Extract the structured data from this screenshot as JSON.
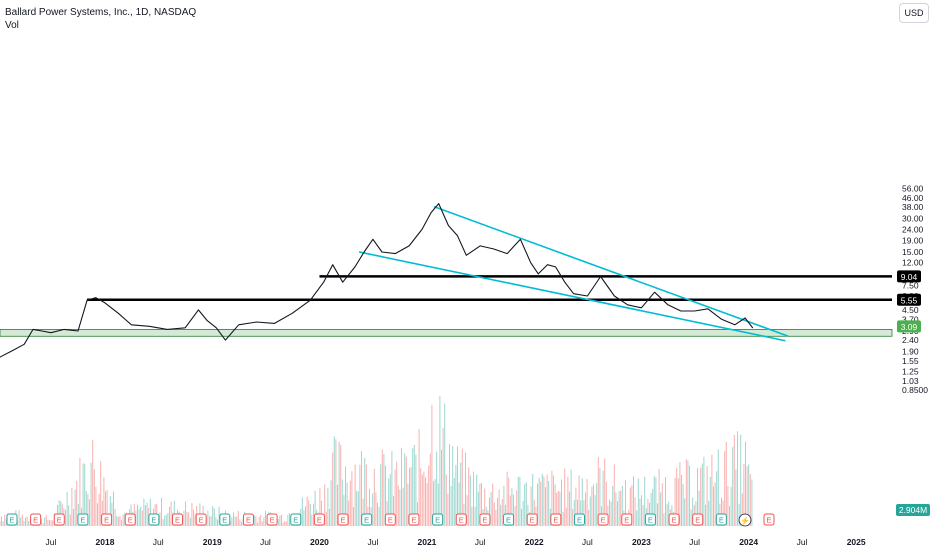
{
  "legend": {
    "title": "Ballard Power Systems, Inc., 1D, NASDAQ",
    "volume_label": "Vol"
  },
  "currency": "USD",
  "colors": {
    "up": "#26a69a",
    "down": "#ef5350",
    "price_line": "#131722",
    "trendline": "#00bcd4",
    "support_zone_fill": "#c8e6c9",
    "support_zone_edge": "#2e7d32",
    "level_line": "#000000",
    "last_price_badge": "#4caf50"
  },
  "chart_data": {
    "type": "line",
    "y_scale": "log",
    "y_ticks": [
      "56.00",
      "46.00",
      "38.00",
      "30.00",
      "24.00",
      "19.00",
      "15.00",
      "12.00",
      "9.50",
      "7.50",
      "6.00",
      "4.50",
      "3.70",
      "2.90",
      "2.40",
      "1.90",
      "1.55",
      "1.25",
      "1.03",
      "0.8500"
    ],
    "x_ticks": [
      "Jul",
      "2018",
      "Jul",
      "2019",
      "Jul",
      "2020",
      "Jul",
      "2021",
      "Jul",
      "2022",
      "Jul",
      "2023",
      "Jul",
      "2024",
      "Jul",
      "2025"
    ],
    "series": [
      {
        "values": [
          {
            "x": "2017-01-01",
            "y": 1.65
          },
          {
            "x": "2017-02-15",
            "y": 1.9
          },
          {
            "x": "2017-04-01",
            "y": 2.2
          },
          {
            "x": "2017-05-01",
            "y": 3.0
          },
          {
            "x": "2017-06-01",
            "y": 2.9
          },
          {
            "x": "2017-07-01",
            "y": 2.8
          },
          {
            "x": "2017-08-15",
            "y": 3.0
          },
          {
            "x": "2017-10-01",
            "y": 2.9
          },
          {
            "x": "2017-11-01",
            "y": 5.5
          },
          {
            "x": "2017-12-01",
            "y": 5.8
          },
          {
            "x": "2018-01-01",
            "y": 5.2
          },
          {
            "x": "2018-02-15",
            "y": 4.2
          },
          {
            "x": "2018-04-01",
            "y": 3.3
          },
          {
            "x": "2018-06-01",
            "y": 3.2
          },
          {
            "x": "2018-08-01",
            "y": 3.0
          },
          {
            "x": "2018-10-01",
            "y": 3.1
          },
          {
            "x": "2018-11-15",
            "y": 4.5
          },
          {
            "x": "2018-12-15",
            "y": 3.6
          },
          {
            "x": "2019-01-15",
            "y": 3.1
          },
          {
            "x": "2019-02-15",
            "y": 2.4
          },
          {
            "x": "2019-04-01",
            "y": 3.3
          },
          {
            "x": "2019-06-01",
            "y": 3.5
          },
          {
            "x": "2019-08-01",
            "y": 3.4
          },
          {
            "x": "2019-10-01",
            "y": 4.2
          },
          {
            "x": "2019-12-01",
            "y": 5.5
          },
          {
            "x": "2020-01-15",
            "y": 8.0
          },
          {
            "x": "2020-02-15",
            "y": 11.5
          },
          {
            "x": "2020-03-20",
            "y": 8.0
          },
          {
            "x": "2020-05-01",
            "y": 11.0
          },
          {
            "x": "2020-06-01",
            "y": 15.0
          },
          {
            "x": "2020-07-01",
            "y": 19.5
          },
          {
            "x": "2020-08-01",
            "y": 15.0
          },
          {
            "x": "2020-09-15",
            "y": 14.5
          },
          {
            "x": "2020-11-01",
            "y": 17.0
          },
          {
            "x": "2020-12-15",
            "y": 24.0
          },
          {
            "x": "2021-01-15",
            "y": 34.0
          },
          {
            "x": "2021-02-10",
            "y": 41.0
          },
          {
            "x": "2021-03-15",
            "y": 26.0
          },
          {
            "x": "2021-04-15",
            "y": 21.0
          },
          {
            "x": "2021-05-15",
            "y": 14.0
          },
          {
            "x": "2021-07-01",
            "y": 17.0
          },
          {
            "x": "2021-08-15",
            "y": 16.0
          },
          {
            "x": "2021-10-01",
            "y": 14.5
          },
          {
            "x": "2021-11-15",
            "y": 19.5
          },
          {
            "x": "2021-12-20",
            "y": 12.0
          },
          {
            "x": "2022-01-15",
            "y": 9.5
          },
          {
            "x": "2022-02-15",
            "y": 11.5
          },
          {
            "x": "2022-03-15",
            "y": 11.0
          },
          {
            "x": "2022-04-15",
            "y": 8.0
          },
          {
            "x": "2022-05-15",
            "y": 6.3
          },
          {
            "x": "2022-07-01",
            "y": 6.0
          },
          {
            "x": "2022-08-15",
            "y": 9.0
          },
          {
            "x": "2022-10-01",
            "y": 6.0
          },
          {
            "x": "2022-11-15",
            "y": 5.0
          },
          {
            "x": "2023-01-01",
            "y": 4.7
          },
          {
            "x": "2023-02-15",
            "y": 6.5
          },
          {
            "x": "2023-04-01",
            "y": 5.0
          },
          {
            "x": "2023-05-15",
            "y": 4.4
          },
          {
            "x": "2023-07-01",
            "y": 4.4
          },
          {
            "x": "2023-08-15",
            "y": 4.6
          },
          {
            "x": "2023-10-01",
            "y": 3.7
          },
          {
            "x": "2023-11-15",
            "y": 3.3
          },
          {
            "x": "2023-12-20",
            "y": 3.8
          },
          {
            "x": "2024-01-15",
            "y": 3.09
          }
        ]
      },
      {
        "name": "Vol",
        "unit": "M",
        "last_value": "2.904M",
        "values": [
          {
            "x": "2017-03-01",
            "y": 1.0
          },
          {
            "x": "2017-07-01",
            "y": 0.6
          },
          {
            "x": "2017-11-15",
            "y": 6.0
          },
          {
            "x": "2018-03-01",
            "y": 1.2
          },
          {
            "x": "2018-06-01",
            "y": 1.8
          },
          {
            "x": "2018-11-15",
            "y": 1.5
          },
          {
            "x": "2019-03-01",
            "y": 1.0
          },
          {
            "x": "2019-09-01",
            "y": 0.9
          },
          {
            "x": "2020-01-15",
            "y": 3.0
          },
          {
            "x": "2020-02-15",
            "y": 5.5
          },
          {
            "x": "2020-06-15",
            "y": 5.0
          },
          {
            "x": "2020-09-15",
            "y": 4.5
          },
          {
            "x": "2020-12-15",
            "y": 6.0
          },
          {
            "x": "2021-01-20",
            "y": 10.0
          },
          {
            "x": "2021-02-10",
            "y": 9.0
          },
          {
            "x": "2021-04-15",
            "y": 5.0
          },
          {
            "x": "2021-07-15",
            "y": 3.0
          },
          {
            "x": "2021-11-15",
            "y": 3.5
          },
          {
            "x": "2022-02-15",
            "y": 3.5
          },
          {
            "x": "2022-05-15",
            "y": 3.5
          },
          {
            "x": "2022-08-15",
            "y": 4.5
          },
          {
            "x": "2022-11-15",
            "y": 3.0
          },
          {
            "x": "2023-03-15",
            "y": 3.5
          },
          {
            "x": "2023-08-15",
            "y": 4.5
          },
          {
            "x": "2023-12-15",
            "y": 6.0
          },
          {
            "x": "2024-01-15",
            "y": 2.9
          }
        ]
      }
    ],
    "horizontal_levels": [
      {
        "value": 9.04,
        "label": "9.04",
        "from": "2020-01-01"
      },
      {
        "value": 5.55,
        "label": "5.55",
        "from": "2017-11-01"
      }
    ],
    "support_zone": {
      "low": 2.6,
      "high": 3.0,
      "label": "3.09"
    },
    "trendlines": [
      {
        "from": {
          "x": "2021-01-25",
          "y": 38.5
        },
        "to": {
          "x": "2024-05-15",
          "y": 2.6
        }
      },
      {
        "from": {
          "x": "2020-05-15",
          "y": 15.0
        },
        "to": {
          "x": "2024-05-05",
          "y": 2.37
        }
      }
    ],
    "event_markers": [
      "E",
      "E",
      "E",
      "E",
      "E",
      "E",
      "E",
      "E",
      "E",
      "E",
      "E",
      "E",
      "E",
      "E",
      "E",
      "E",
      "E",
      "E",
      "E",
      "E",
      "E",
      "E",
      "E",
      "E",
      "E",
      "E",
      "E",
      "E",
      "E",
      "E",
      "E",
      "⚡",
      "E"
    ]
  }
}
